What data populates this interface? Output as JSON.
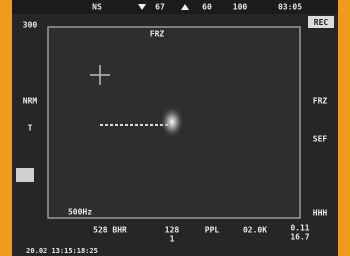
{
  "status_bar": {
    "items": [
      "NS",
      "67",
      "60",
      "100",
      "03:05"
    ]
  },
  "screen": {
    "corner_label": "300",
    "mode": "FRZ",
    "record": "REC",
    "left_labels": [
      "NRM",
      "T"
    ],
    "right_labels": [
      "FRZ",
      "SEF",
      "HHH"
    ],
    "scale_label": "500Hz",
    "bottom_labels": [
      "528 BHR",
      "128",
      "1",
      "PPL",
      "02.0K",
      "0.11",
      "16.7"
    ],
    "timestamp": "20.02 13:15:18:25"
  }
}
